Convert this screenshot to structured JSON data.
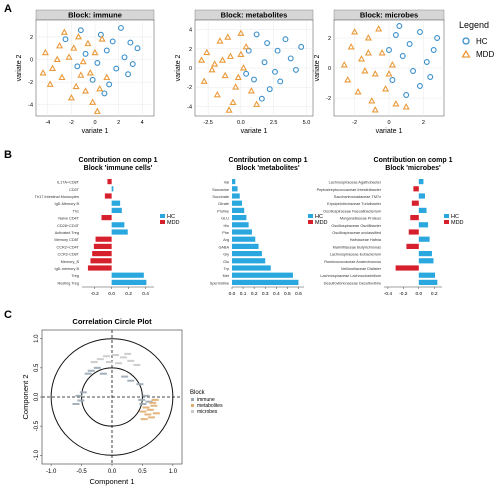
{
  "panel_labels": {
    "a": "A",
    "b": "B",
    "c": "C"
  },
  "colors": {
    "hc": "#3a8fcb",
    "mdd": "#ea9a3a",
    "bar_hc": "#29a7de",
    "bar_mdd": "#d7202d",
    "strip": "#d6d6d6",
    "circle_immune": "#9aa7b3",
    "circle_metab": "#e0ad6e",
    "circle_microbes": "#c8c8c8"
  },
  "legend_a": {
    "title": "Legend",
    "items": [
      {
        "label": "HC",
        "marker": "circle-open",
        "color": "#3a8fcb"
      },
      {
        "label": "MDD",
        "marker": "triangle-open",
        "color": "#ea9a3a"
      }
    ]
  },
  "chart_data": [
    {
      "type": "scatter",
      "title": "Block: immune",
      "xlabel": "variate 1",
      "ylabel": "variate 2",
      "xticks": [
        "-4",
        "-2",
        "0",
        "2",
        "4"
      ],
      "yticks": [
        "-4",
        "-2",
        "0",
        "2"
      ],
      "xlim": [
        -5,
        5
      ],
      "ylim": [
        -5,
        3.5
      ],
      "series": [
        {
          "name": "HC",
          "points": [
            [
              -2.5,
              1.8
            ],
            [
              -1.2,
              2.6
            ],
            [
              0.5,
              2.2
            ],
            [
              1.5,
              1.6
            ],
            [
              2.2,
              2.8
            ],
            [
              3.0,
              1.5
            ],
            [
              -0.8,
              0.5
            ],
            [
              1.0,
              0.8
            ],
            [
              2.5,
              0.2
            ],
            [
              3.6,
              1.0
            ],
            [
              0.2,
              -0.3
            ],
            [
              1.8,
              -0.8
            ],
            [
              2.8,
              -1.3
            ],
            [
              -0.2,
              -1.8
            ],
            [
              1.2,
              -2.2
            ],
            [
              3.2,
              -0.4
            ],
            [
              -1.5,
              -0.6
            ],
            [
              0.8,
              -3.0
            ]
          ]
        },
        {
          "name": "MDD",
          "points": [
            [
              -4.2,
              0.6
            ],
            [
              -3.6,
              -0.8
            ],
            [
              -3.0,
              1.2
            ],
            [
              -2.8,
              -1.6
            ],
            [
              -2.2,
              0.2
            ],
            [
              -1.8,
              1.0
            ],
            [
              -1.6,
              -2.4
            ],
            [
              -1.0,
              -0.2
            ],
            [
              -0.6,
              1.4
            ],
            [
              -0.4,
              -1.2
            ],
            [
              0.0,
              0.6
            ],
            [
              0.4,
              -2.6
            ],
            [
              -3.8,
              -2.2
            ],
            [
              -2.0,
              -3.4
            ],
            [
              -1.2,
              -1.4
            ],
            [
              -0.2,
              -3.8
            ],
            [
              0.6,
              1.8
            ],
            [
              -2.6,
              2.4
            ],
            [
              -3.2,
              0.0
            ],
            [
              -1.4,
              2.0
            ],
            [
              1.0,
              -1.6
            ],
            [
              -4.4,
              -1.2
            ],
            [
              -0.8,
              -2.8
            ],
            [
              0.2,
              -4.6
            ]
          ]
        }
      ]
    },
    {
      "type": "scatter",
      "title": "Block: metabolites",
      "xlabel": "variate 1",
      "ylabel": "variate 2",
      "xticks": [
        "-2.5",
        "0.0",
        "2.5",
        "5.0"
      ],
      "yticks": [
        "-4",
        "-2",
        "0",
        "2",
        "4"
      ],
      "xlim": [
        -3.5,
        5.5
      ],
      "ylim": [
        -5,
        5
      ],
      "series": [
        {
          "name": "HC",
          "points": [
            [
              1.2,
              3.5
            ],
            [
              2.0,
              2.6
            ],
            [
              2.8,
              1.8
            ],
            [
              3.4,
              3.0
            ],
            [
              1.8,
              0.6
            ],
            [
              2.6,
              -0.4
            ],
            [
              3.8,
              1.0
            ],
            [
              1.0,
              -1.2
            ],
            [
              2.2,
              -2.2
            ],
            [
              3.0,
              -1.4
            ],
            [
              0.6,
              1.8
            ],
            [
              4.2,
              -0.2
            ],
            [
              1.6,
              -3.2
            ],
            [
              0.4,
              -0.6
            ],
            [
              4.6,
              2.2
            ]
          ]
        },
        {
          "name": "MDD",
          "points": [
            [
              -2.6,
              1.6
            ],
            [
              -2.0,
              0.4
            ],
            [
              -1.6,
              2.8
            ],
            [
              -1.2,
              -0.8
            ],
            [
              -0.8,
              1.2
            ],
            [
              -0.4,
              -2.0
            ],
            [
              0.0,
              3.6
            ],
            [
              0.2,
              0.0
            ],
            [
              -2.8,
              -1.4
            ],
            [
              -1.8,
              -2.8
            ],
            [
              -1.0,
              3.2
            ],
            [
              -0.6,
              -3.6
            ],
            [
              0.4,
              2.2
            ],
            [
              -2.2,
              -0.2
            ],
            [
              -1.4,
              0.8
            ],
            [
              0.8,
              -2.4
            ],
            [
              -0.2,
              -1.0
            ],
            [
              1.2,
              -3.8
            ],
            [
              -3.0,
              0.8
            ],
            [
              -0.9,
              -4.4
            ],
            [
              0.0,
              1.4
            ]
          ]
        }
      ]
    },
    {
      "type": "scatter",
      "title": "Block: microbes",
      "xlabel": "variate 1",
      "ylabel": "variate 2",
      "xticks": [
        "-2",
        "0",
        "2"
      ],
      "yticks": [
        "-2",
        "0",
        "2"
      ],
      "xlim": [
        -3.2,
        3.2
      ],
      "ylim": [
        -3.2,
        3.2
      ],
      "series": [
        {
          "name": "HC",
          "points": [
            [
              0.4,
              2.2
            ],
            [
              1.2,
              1.6
            ],
            [
              1.8,
              2.4
            ],
            [
              0.8,
              0.8
            ],
            [
              2.2,
              0.4
            ],
            [
              1.4,
              -0.2
            ],
            [
              2.6,
              1.2
            ],
            [
              0.2,
              -0.8
            ],
            [
              1.8,
              -1.2
            ],
            [
              2.4,
              -0.6
            ],
            [
              0.6,
              2.8
            ],
            [
              1.0,
              -1.8
            ],
            [
              2.8,
              2.0
            ],
            [
              0.0,
              1.2
            ]
          ]
        },
        {
          "name": "MDD",
          "points": [
            [
              -2.2,
              1.4
            ],
            [
              -1.6,
              0.6
            ],
            [
              -1.2,
              2.0
            ],
            [
              -0.8,
              -0.4
            ],
            [
              -0.4,
              1.0
            ],
            [
              -2.4,
              -0.8
            ],
            [
              -1.8,
              -1.6
            ],
            [
              -1.0,
              -2.2
            ],
            [
              -0.2,
              -1.4
            ],
            [
              0.2,
              0.2
            ],
            [
              -1.4,
              -0.2
            ],
            [
              -2.0,
              2.4
            ],
            [
              -0.6,
              2.6
            ],
            [
              0.4,
              -2.4
            ],
            [
              -2.6,
              0.2
            ],
            [
              -1.2,
              1.0
            ],
            [
              0.0,
              -0.4
            ],
            [
              -0.8,
              -2.8
            ],
            [
              1.0,
              -2.6
            ]
          ]
        }
      ]
    },
    {
      "type": "bar",
      "orientation": "horizontal",
      "title": "Contribution on comp 1",
      "subtitle": "Block 'immune cells'",
      "xticks": [
        "-0.2",
        "0.0",
        "0.2",
        "0.4"
      ],
      "xlim": [
        -0.35,
        0.5
      ],
      "legend": [
        "HC",
        "MDD"
      ],
      "bars": [
        {
          "label": "IL17A+CD8T",
          "value": -0.05,
          "group": "MDD"
        },
        {
          "label": "CD3T",
          "value": 0.02,
          "group": "HC"
        },
        {
          "label": "Th17 Intestinal Monocytes",
          "value": -0.08,
          "group": "MDD"
        },
        {
          "label": "IgD-Memory B",
          "value": 0.1,
          "group": "HC"
        },
        {
          "label": "Th1",
          "value": 0.12,
          "group": "HC"
        },
        {
          "label": "Naive CD4T",
          "value": -0.12,
          "group": "MDD"
        },
        {
          "label": "CD28+CD4T",
          "value": 0.15,
          "group": "HC"
        },
        {
          "label": "Activated Treg",
          "value": 0.19,
          "group": "HC"
        },
        {
          "label": "Memory CD8T",
          "value": -0.19,
          "group": "MDD"
        },
        {
          "label": "CCR2+CD4T",
          "value": -0.21,
          "group": "MDD"
        },
        {
          "label": "CCR2-CD8T",
          "value": -0.23,
          "group": "MDD"
        },
        {
          "label": "Memory_B",
          "value": -0.25,
          "group": "MDD"
        },
        {
          "label": "IgD-memory B",
          "value": -0.28,
          "group": "MDD"
        },
        {
          "label": "Treg",
          "value": 0.38,
          "group": "HC"
        },
        {
          "label": "Resting Treg",
          "value": 0.41,
          "group": "HC"
        }
      ]
    },
    {
      "type": "bar",
      "orientation": "horizontal",
      "title": "Contribution on comp 1",
      "subtitle": "Block 'metabolites'",
      "xticks": [
        "0.0",
        "0.1",
        "0.2",
        "0.3",
        "0.4",
        "0.5",
        "0.6"
      ],
      "xlim": [
        0,
        0.65
      ],
      "legend": [
        "HC",
        "MDD"
      ],
      "bars": [
        {
          "label": "Val",
          "value": 0.03,
          "group": "HC"
        },
        {
          "label": "Sarcosine",
          "value": 0.05,
          "group": "HC"
        },
        {
          "label": "Succinate",
          "value": 0.07,
          "group": "HC"
        },
        {
          "label": "Citrate",
          "value": 0.09,
          "group": "HC"
        },
        {
          "label": "Proline",
          "value": 0.11,
          "group": "HC"
        },
        {
          "label": "GLU",
          "value": 0.13,
          "group": "HC"
        },
        {
          "label": "His",
          "value": 0.15,
          "group": "HC"
        },
        {
          "label": "Phe",
          "value": 0.18,
          "group": "HC"
        },
        {
          "label": "Arg",
          "value": 0.21,
          "group": "HC"
        },
        {
          "label": "GABA",
          "value": 0.24,
          "group": "HC"
        },
        {
          "label": "Gly",
          "value": 0.27,
          "group": "HC"
        },
        {
          "label": "Glu",
          "value": 0.3,
          "group": "HC"
        },
        {
          "label": "Trp",
          "value": 0.35,
          "group": "HC"
        },
        {
          "label": "Met",
          "value": 0.55,
          "group": "HC"
        },
        {
          "label": "Spermidine",
          "value": 0.6,
          "group": "HC"
        }
      ]
    },
    {
      "type": "bar",
      "orientation": "horizontal",
      "title": "Contribution on comp 1",
      "subtitle": "Block 'microbes'",
      "xticks": [
        "-0.4",
        "-0.2",
        "0.0",
        "0.2"
      ],
      "xlim": [
        -0.45,
        0.3
      ],
      "legend": [
        "HC",
        "MDD"
      ],
      "bars": [
        {
          "label": "Lachnospiraceae Agathobacter",
          "value": 0.06,
          "group": "HC"
        },
        {
          "label": "Peptostreptococcaceae Intestinibacter",
          "value": -0.07,
          "group": "MDD"
        },
        {
          "label": "Saccharimonadaceae TM7x",
          "value": 0.08,
          "group": "HC"
        },
        {
          "label": "Erysipelotrichaceae Turicibacter",
          "value": -0.09,
          "group": "MDD"
        },
        {
          "label": "Oscillospiraceae Faecalibacterium",
          "value": 0.1,
          "group": "HC"
        },
        {
          "label": "Morganellaceae Proteus",
          "value": -0.11,
          "group": "MDD"
        },
        {
          "label": "Oscillospiraceae Oscillibacter",
          "value": 0.12,
          "group": "HC"
        },
        {
          "label": "Oscillospiraceae unclassified",
          "value": -0.13,
          "group": "MDD"
        },
        {
          "label": "Hafniaceae Hafnia",
          "value": 0.14,
          "group": "HC"
        },
        {
          "label": "Marinifilaceae Butyricimonas",
          "value": -0.16,
          "group": "MDD"
        },
        {
          "label": "Lachnospiraceae Eubacterium",
          "value": 0.17,
          "group": "HC"
        },
        {
          "label": "Ruminococcaceae Anaerotruncus",
          "value": 0.19,
          "group": "HC"
        },
        {
          "label": "Veillonellaceae Dialister",
          "value": -0.3,
          "group": "MDD"
        },
        {
          "label": "Lachnospiraceae Lachnoclostridium",
          "value": 0.21,
          "group": "HC"
        },
        {
          "label": "Desulfovibrionaceae Desulfovibrio",
          "value": 0.24,
          "group": "HC"
        }
      ]
    },
    {
      "type": "scatter",
      "subtype": "correlation-circle",
      "title": "Correlation Circle Plot",
      "xlabel": "Component  1",
      "ylabel": "Component  2",
      "xticks": [
        "-1.0",
        "-0.5",
        "0.0",
        "0.5",
        "1.0"
      ],
      "yticks": [
        "-1.0",
        "-0.5",
        "0.0",
        "0.5",
        "1.0"
      ],
      "xlim": [
        -1.15,
        1.15
      ],
      "ylim": [
        -1.15,
        1.15
      ],
      "inner_radius": 0.5,
      "legend_title": "Block",
      "legend": [
        "immune",
        "metabolites",
        "microbes"
      ],
      "series": [
        {
          "name": "immune",
          "points": [
            [
              -0.55,
              0.02
            ],
            [
              -0.52,
              -0.06
            ],
            [
              -0.6,
              -0.12
            ],
            [
              -0.48,
              0.08
            ],
            [
              0.48,
              -0.05
            ],
            [
              0.55,
              0.02
            ],
            [
              0.5,
              -0.12
            ],
            [
              0.6,
              -0.08
            ],
            [
              -0.35,
              0.45
            ],
            [
              -0.25,
              0.5
            ],
            [
              -0.15,
              0.4
            ],
            [
              0.2,
              0.35
            ],
            [
              0.3,
              0.28
            ],
            [
              0.45,
              0.22
            ],
            [
              -0.4,
              0.4
            ]
          ]
        },
        {
          "name": "metabolites",
          "points": [
            [
              0.55,
              -0.18
            ],
            [
              0.62,
              -0.22
            ],
            [
              0.68,
              -0.15
            ],
            [
              0.58,
              -0.3
            ],
            [
              0.7,
              -0.05
            ],
            [
              0.5,
              -0.25
            ],
            [
              0.64,
              -0.35
            ],
            [
              0.72,
              -0.28
            ],
            [
              0.52,
              -0.38
            ],
            [
              0.66,
              -0.1
            ]
          ]
        },
        {
          "name": "microbes",
          "points": [
            [
              -0.1,
              0.7
            ],
            [
              0.05,
              0.72
            ],
            [
              0.18,
              0.68
            ],
            [
              -0.2,
              0.65
            ],
            [
              0.3,
              0.62
            ],
            [
              -0.3,
              0.6
            ],
            [
              0.4,
              0.55
            ],
            [
              0.25,
              0.74
            ],
            [
              -0.05,
              0.6
            ],
            [
              0.1,
              0.58
            ]
          ]
        }
      ]
    }
  ]
}
